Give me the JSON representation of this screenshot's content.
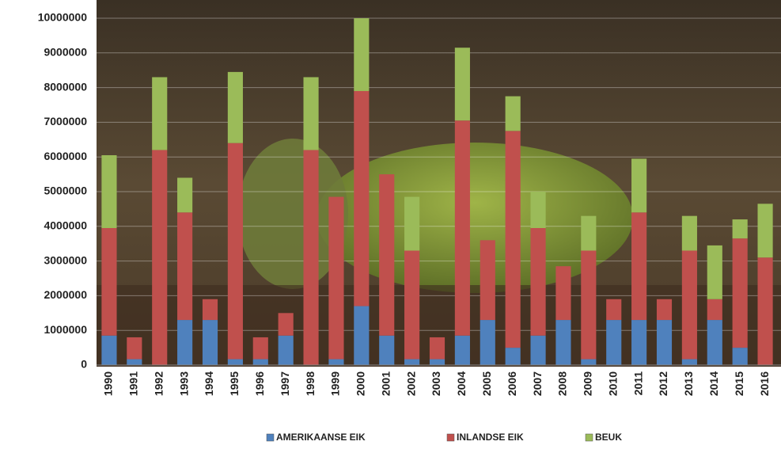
{
  "chart_data": {
    "type": "stacked-bar",
    "categories": [
      "1990",
      "1991",
      "1992",
      "1993",
      "1994",
      "1995",
      "1996",
      "1997",
      "1998",
      "1999",
      "2000",
      "2001",
      "2002",
      "2003",
      "2004",
      "2005",
      "2006",
      "2007",
      "2008",
      "2009",
      "2010",
      "2011",
      "2012",
      "2013",
      "2014",
      "2015",
      "2016"
    ],
    "series": [
      {
        "name": "AMERIKAANSE EIK",
        "color": "#4f81bd",
        "values": [
          850000,
          170000,
          0,
          1300000,
          1300000,
          170000,
          170000,
          850000,
          0,
          170000,
          1700000,
          850000,
          170000,
          170000,
          850000,
          1300000,
          500000,
          850000,
          1300000,
          170000,
          1300000,
          1300000,
          1300000,
          170000,
          1300000,
          500000,
          0
        ]
      },
      {
        "name": "INLANDSE EIK",
        "color": "#c0504d",
        "values": [
          3100000,
          630000,
          6200000,
          3100000,
          600000,
          6230000,
          630000,
          650000,
          6200000,
          4680000,
          6200000,
          4650000,
          3130000,
          630000,
          6200000,
          2300000,
          6250000,
          3100000,
          1550000,
          3130000,
          600000,
          3100000,
          600000,
          3130000,
          600000,
          3150000,
          3100000
        ]
      },
      {
        "name": "BEUK",
        "color": "#9bbb59",
        "values": [
          2100000,
          0,
          2100000,
          1000000,
          0,
          2050000,
          0,
          0,
          2100000,
          0,
          2100000,
          0,
          1550000,
          0,
          2100000,
          0,
          1000000,
          1050000,
          0,
          1000000,
          0,
          1550000,
          0,
          1000000,
          1550000,
          550000,
          1550000
        ]
      }
    ],
    "ylim": [
      0,
      10000000
    ],
    "yticks": [
      0,
      1000000,
      2000000,
      3000000,
      4000000,
      5000000,
      6000000,
      7000000,
      8000000,
      9000000,
      10000000
    ],
    "grid": true,
    "legend": "bottom"
  }
}
